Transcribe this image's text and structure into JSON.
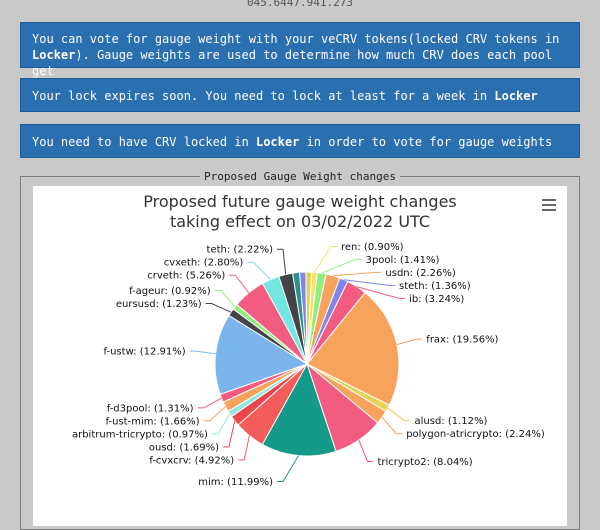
{
  "header": {
    "address_fragment": "045.6447.941.273"
  },
  "notices": {
    "vote_info": {
      "part1": "You can vote for gauge weight with your veCRV tokens(locked CRV tokens in ",
      "locker": "Locker",
      "part2": "). Gauge weights are used to determine how much CRV does each pool get"
    },
    "lock_expiry": {
      "part1": "Your lock expires soon. You need to lock at least for a week in ",
      "locker": "Locker"
    },
    "need_lock": {
      "part1": "You need to have CRV locked in ",
      "locker": "Locker",
      "part2": " in order to vote for gauge weights"
    }
  },
  "section": {
    "legend": "Proposed Gauge Weight changes"
  },
  "chart_data": {
    "type": "pie",
    "title_line1": "Proposed future gauge weight changes",
    "title_line2": "taking effect on 03/02/2022 UTC",
    "slices": [
      {
        "label": "ren: (0.90%)",
        "value": 0.9,
        "color": "#f7e16b"
      },
      {
        "label": "3pool: (1.41%)",
        "value": 1.41,
        "color": "#90ed7d"
      },
      {
        "label": "usdn: (2.26%)",
        "value": 2.26,
        "color": "#f7a35c"
      },
      {
        "label": "steth: (1.36%)",
        "value": 1.36,
        "color": "#8085e9"
      },
      {
        "label": "ib: (3.24%)",
        "value": 3.24,
        "color": "#f15c80"
      },
      {
        "label": "frax: (19.56%)",
        "value": 19.56,
        "color": "#f7a35c"
      },
      {
        "label": "alusd: (1.12%)",
        "value": 1.12,
        "color": "#e4d354"
      },
      {
        "label": "polygon-atricrypto: (2.24%)",
        "value": 2.24,
        "color": "#f7a35c"
      },
      {
        "label": "tricrypto2: (8.04%)",
        "value": 8.04,
        "color": "#f15c80"
      },
      {
        "label": "mim: (11.99%)",
        "value": 11.99,
        "color": "#159a8a"
      },
      {
        "label": "f-cvxcrv: (4.92%)",
        "value": 4.92,
        "color": "#f45b5b"
      },
      {
        "label": "ousd: (1.69%)",
        "value": 1.69,
        "color": "#e8474b"
      },
      {
        "label": "arbitrum-tricrypto: (0.97%)",
        "value": 0.97,
        "color": "#91e8e1"
      },
      {
        "label": "f-ust-mim: (1.66%)",
        "value": 1.66,
        "color": "#f7a35c"
      },
      {
        "label": "f-d3pool: (1.31%)",
        "value": 1.31,
        "color": "#f15c80"
      },
      {
        "label": "f-ustw: (12.91%)",
        "value": 12.91,
        "color": "#7cb5ec"
      },
      {
        "label": "eursusd: (1.23%)",
        "value": 1.23,
        "color": "#434348"
      },
      {
        "label": "f-ageur: (0.92%)",
        "value": 0.92,
        "color": "#90ed7d"
      },
      {
        "label": "crveth: (5.26%)",
        "value": 5.26,
        "color": "#f15c80"
      },
      {
        "label": "cvxeth: (2.80%)",
        "value": 2.8,
        "color": "#72e6e0"
      },
      {
        "label": "teth: (2.22%)",
        "value": 2.22,
        "color": "#434348"
      },
      {
        "label": "",
        "value": 1.1,
        "color": "#2b908f"
      },
      {
        "label": "",
        "value": 1.0,
        "color": "#8085e9"
      },
      {
        "label": "",
        "value": 0.9,
        "color": "#e4d354"
      }
    ]
  }
}
